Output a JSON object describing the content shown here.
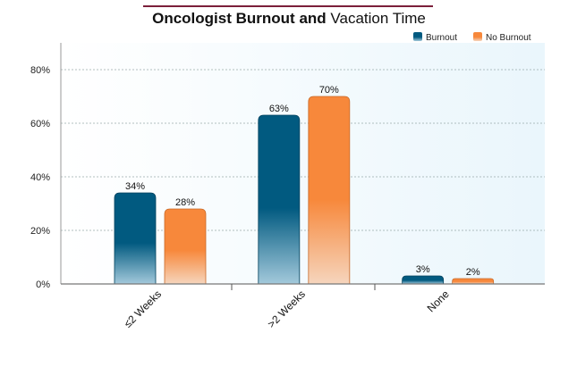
{
  "chart_data": {
    "type": "bar",
    "title_bold_1": "Oncologist Burnout",
    "title_bold_2": "and",
    "title_rest": "Vacation Time",
    "categories": [
      "≤2 Weeks",
      ">2 Weeks",
      "None"
    ],
    "series": [
      {
        "name": "Burnout",
        "values": [
          34,
          63,
          3
        ],
        "labels": [
          "34%",
          "63%",
          "3%"
        ]
      },
      {
        "name": "No Burnout",
        "values": [
          28,
          70,
          2
        ],
        "labels": [
          "28%",
          "70%",
          "2%"
        ]
      }
    ],
    "y_ticks": [
      0,
      20,
      40,
      60,
      80
    ],
    "y_tick_labels": [
      "0%",
      "20%",
      "40%",
      "60%",
      "80%"
    ],
    "ylim": [
      0,
      90
    ],
    "grid": true,
    "legend_position": "top-right",
    "colors": {
      "burnout_top": "#015a80",
      "burnout_bottom": "#a3c9db",
      "noburnout_top": "#f7883b",
      "noburnout_bottom": "#f6d5bd",
      "title_rule": "#7b1f3a",
      "plot_bg": "#eef7fc"
    }
  }
}
